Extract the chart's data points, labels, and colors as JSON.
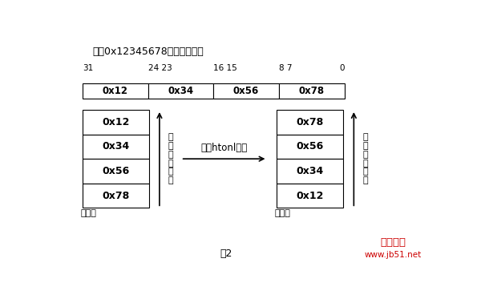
{
  "title": "整形0x12345678的位表示方法",
  "bit_labels": [
    "31",
    "24 23",
    "16 15",
    "8 7",
    "0"
  ],
  "top_boxes": [
    "0x12",
    "0x34",
    "0x56",
    "0x78"
  ],
  "left_stack": [
    "0x12",
    "0x34",
    "0x56",
    "0x78"
  ],
  "right_stack": [
    "0x78",
    "0x56",
    "0x34",
    "0x12"
  ],
  "arrow_label": "使用htonl转换",
  "left_axis_label": "地\n址\n增\n大\n方\n向",
  "right_axis_label": "地\n址\n增\n大\n方\n向",
  "low_addr_label": "低地址",
  "caption": "图2",
  "watermark": "脚本之家",
  "watermark2": "www.jb51.net",
  "bg_color": "#ffffff",
  "box_color": "#ffffff",
  "box_edge_color": "#000000",
  "text_color": "#000000",
  "watermark_color": "#cc0000"
}
